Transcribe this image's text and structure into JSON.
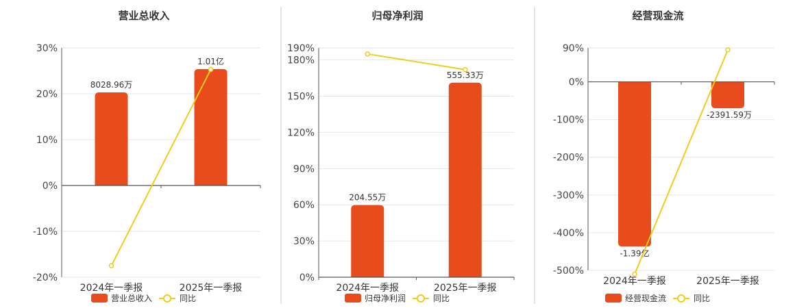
{
  "colors": {
    "bar": "#e84c1c",
    "line": "#f1cc1a",
    "grid": "#e3e6ef",
    "axis": "#555555",
    "divider": "#c8c8c8"
  },
  "chart_data": [
    {
      "type": "bar",
      "title": "营业总收入",
      "categories": [
        "2024年一季报",
        "2025年一季报"
      ],
      "series": [
        {
          "name": "营业总收入",
          "kind": "bar",
          "values": [
            20.3,
            25.4
          ],
          "labels": [
            "8028.96万",
            "1.01亿"
          ]
        },
        {
          "name": "同比",
          "kind": "line",
          "values": [
            -17.5,
            25.3
          ]
        }
      ],
      "yticks": [
        30,
        20,
        10,
        0,
        -10,
        -20
      ],
      "ytick_labels": [
        "30%",
        "20%",
        "10%",
        "0%",
        "-10%",
        "-20%"
      ],
      "ylim": [
        -20,
        30
      ],
      "grid": true,
      "legend": [
        "营业总收入",
        "同比"
      ]
    },
    {
      "type": "bar",
      "title": "归母净利润",
      "categories": [
        "2024年一季报",
        "2025年一季报"
      ],
      "series": [
        {
          "name": "归母净利润",
          "kind": "bar",
          "values": [
            59.8,
            161.2
          ],
          "labels": [
            "204.55万",
            "555.33万"
          ]
        },
        {
          "name": "同比",
          "kind": "line",
          "values": [
            185,
            172
          ]
        }
      ],
      "yticks": [
        190,
        180,
        150,
        120,
        90,
        60,
        30,
        0
      ],
      "ytick_labels": [
        "190%",
        "180%",
        "150%",
        "120%",
        "90%",
        "60%",
        "30%",
        "0%"
      ],
      "ylim": [
        0,
        190
      ],
      "grid": true,
      "legend": [
        "归母净利润",
        "同比"
      ]
    },
    {
      "type": "bar",
      "title": "经营现金流",
      "categories": [
        "2024年一季报",
        "2025年一季报"
      ],
      "series": [
        {
          "name": "经营现金流",
          "kind": "bar",
          "values": [
            -437,
            -70
          ],
          "labels": [
            "-1.39亿",
            "-2391.59万"
          ]
        },
        {
          "name": "同比",
          "kind": "line",
          "values": [
            -510,
            85
          ]
        }
      ],
      "yticks": [
        90,
        0,
        -100,
        -200,
        -300,
        -400,
        -500
      ],
      "ytick_labels": [
        "90%",
        "0%",
        "-100%",
        "-200%",
        "-300%",
        "-400%",
        "-500%"
      ],
      "ylim": [
        -500,
        90
      ],
      "grid": true,
      "legend": [
        "经营现金流",
        "同比"
      ]
    }
  ]
}
